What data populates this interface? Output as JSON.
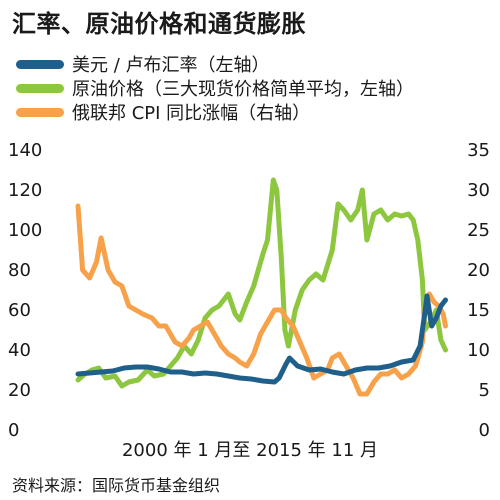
{
  "chart_data": {
    "type": "line",
    "title": "汇率、原油价格和通货膨胀",
    "xlabel": "2000 年 1 月至 2015 年 11 月",
    "y_left": {
      "range": [
        0,
        140
      ],
      "ticks": [
        "0",
        "20",
        "40",
        "60",
        "80",
        "100",
        "120",
        "140"
      ]
    },
    "y_right": {
      "range": [
        0,
        35
      ],
      "ticks": [
        "0",
        "5",
        "10",
        "15",
        "20",
        "25",
        "30",
        "35"
      ]
    },
    "grid": false,
    "legend_position": "top-left",
    "series": [
      {
        "name": "美元 / 卢布汇率（左轴）",
        "axis": "left",
        "color": "#1f5f8b",
        "x": [
          2000.0,
          2000.5,
          2001.0,
          2001.5,
          2002.0,
          2002.5,
          2003.0,
          2003.5,
          2004.0,
          2004.5,
          2005.0,
          2005.5,
          2006.0,
          2006.5,
          2007.0,
          2007.5,
          2008.0,
          2008.5,
          2008.7,
          2009.0,
          2009.15,
          2009.5,
          2010.0,
          2010.5,
          2011.0,
          2011.5,
          2012.0,
          2012.5,
          2013.0,
          2013.5,
          2014.0,
          2014.5,
          2014.8,
          2015.0,
          2015.1,
          2015.3,
          2015.5,
          2015.7,
          2015.9
        ],
        "y": [
          28,
          28.5,
          29,
          29.5,
          31,
          31.5,
          31.5,
          30.5,
          29,
          29,
          28,
          28.5,
          28,
          27,
          26,
          25.5,
          24.5,
          24,
          26,
          33,
          36,
          32,
          30,
          30.5,
          29,
          28,
          30,
          31,
          31,
          32,
          34,
          35,
          42,
          58,
          67,
          52,
          56,
          62,
          65
        ]
      },
      {
        "name": "原油价格（三大现货价格简单平均，左轴）",
        "axis": "left",
        "color": "#8dc63f",
        "x": [
          2000.0,
          2000.3,
          2000.6,
          2000.9,
          2001.2,
          2001.6,
          2001.9,
          2002.2,
          2002.6,
          2003.0,
          2003.3,
          2003.7,
          2004.0,
          2004.3,
          2004.6,
          2004.9,
          2005.2,
          2005.5,
          2005.8,
          2006.1,
          2006.5,
          2006.8,
          2007.0,
          2007.3,
          2007.6,
          2007.8,
          2008.0,
          2008.2,
          2008.45,
          2008.6,
          2008.8,
          2008.95,
          2009.1,
          2009.4,
          2009.7,
          2010.0,
          2010.3,
          2010.6,
          2011.0,
          2011.25,
          2011.5,
          2011.8,
          2012.1,
          2012.3,
          2012.5,
          2012.8,
          2013.1,
          2013.4,
          2013.7,
          2014.0,
          2014.3,
          2014.5,
          2014.7,
          2014.9,
          2015.0,
          2015.3,
          2015.5,
          2015.7,
          2015.9
        ],
        "y": [
          25,
          28,
          30,
          31,
          26,
          27,
          22,
          24,
          25,
          30,
          27,
          28,
          32,
          36,
          42,
          38,
          45,
          56,
          60,
          62,
          68,
          58,
          55,
          64,
          72,
          80,
          88,
          95,
          125,
          120,
          85,
          50,
          42,
          60,
          70,
          75,
          78,
          75,
          90,
          113,
          110,
          105,
          110,
          120,
          95,
          108,
          110,
          105,
          108,
          107,
          108,
          105,
          95,
          75,
          50,
          55,
          60,
          45,
          40
        ]
      },
      {
        "name": "俄联邦 CPI 同比涨幅（右轴）",
        "axis": "right",
        "color": "#f7a14a",
        "x": [
          2000.0,
          2000.2,
          2000.5,
          2000.8,
          2001.0,
          2001.3,
          2001.6,
          2001.9,
          2002.2,
          2002.5,
          2002.8,
          2003.2,
          2003.5,
          2003.8,
          2004.2,
          2004.5,
          2004.8,
          2005.0,
          2005.3,
          2005.6,
          2005.9,
          2006.2,
          2006.5,
          2006.8,
          2007.0,
          2007.3,
          2007.6,
          2007.9,
          2008.2,
          2008.5,
          2008.8,
          2009.0,
          2009.3,
          2009.6,
          2009.9,
          2010.2,
          2010.5,
          2010.8,
          2011.0,
          2011.3,
          2011.6,
          2011.9,
          2012.2,
          2012.5,
          2012.8,
          2013.1,
          2013.4,
          2013.7,
          2014.0,
          2014.3,
          2014.6,
          2014.9,
          2015.0,
          2015.2,
          2015.4,
          2015.6,
          2015.8,
          2015.9
        ],
        "y": [
          28,
          20,
          19,
          21,
          24,
          20,
          18.5,
          18,
          15.5,
          15,
          14.5,
          14,
          13,
          13,
          11,
          10.5,
          11.5,
          12.5,
          13,
          13.5,
          12,
          10.5,
          9.5,
          9,
          8.5,
          8,
          9.5,
          12,
          13.5,
          15,
          15,
          14,
          13,
          11,
          9,
          6.5,
          7,
          7.5,
          9,
          9.5,
          8,
          6.5,
          4.5,
          4.5,
          6,
          7,
          7,
          7.5,
          6.5,
          7,
          8,
          11,
          15,
          17,
          16,
          15.5,
          14.5,
          13
        ]
      }
    ],
    "source": "资料来源：国际货币基金组织"
  }
}
